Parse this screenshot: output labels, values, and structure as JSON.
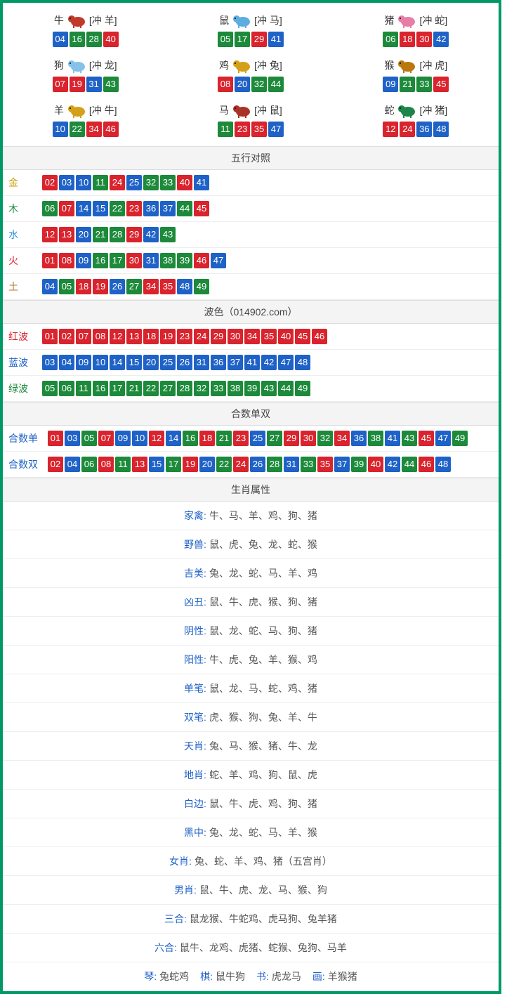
{
  "colors": {
    "border": "#009966",
    "ball_red": "#d9232d",
    "ball_blue": "#1f62c7",
    "ball_green": "#1c8a3a",
    "header_bg": "#f4f4f4",
    "row_border": "#eeeeee",
    "label_gold": "#c79a00",
    "label_wood": "#1c8a3a",
    "label_water": "#1f8fd9",
    "label_fire": "#d9232d",
    "label_earth": "#b07a2a",
    "attr_label": "#1f62c7"
  },
  "ball_color_rule": "red: [1,2,7,8,12,13,18,19,23,24,29,30,34,35,40,45,46]; blue: [3,4,9,10,14,15,20,25,26,31,36,37,41,42,47,48]; green: [5,6,11,16,17,21,22,27,28,32,33,38,39,43,44,49]",
  "zodiac": [
    {
      "name": "牛",
      "conflict": "[冲 羊]",
      "icon_color": "#c0392b",
      "balls": [
        4,
        16,
        28,
        40
      ]
    },
    {
      "name": "鼠",
      "conflict": "[冲 马]",
      "icon_color": "#5dade2",
      "balls": [
        5,
        17,
        29,
        41
      ]
    },
    {
      "name": "猪",
      "conflict": "[冲 蛇]",
      "icon_color": "#e67ea8",
      "balls": [
        6,
        18,
        30,
        42
      ]
    },
    {
      "name": "狗",
      "conflict": "[冲 龙]",
      "icon_color": "#85c1e9",
      "balls": [
        7,
        19,
        31,
        43
      ]
    },
    {
      "name": "鸡",
      "conflict": "[冲 兔]",
      "icon_color": "#d4a017",
      "balls": [
        8,
        20,
        32,
        44
      ]
    },
    {
      "name": "猴",
      "conflict": "[冲 虎]",
      "icon_color": "#b9770e",
      "balls": [
        9,
        21,
        33,
        45
      ]
    },
    {
      "name": "羊",
      "conflict": "[冲 牛]",
      "icon_color": "#d4a017",
      "balls": [
        10,
        22,
        34,
        46
      ]
    },
    {
      "name": "马",
      "conflict": "[冲 鼠]",
      "icon_color": "#a93226",
      "balls": [
        11,
        23,
        35,
        47
      ]
    },
    {
      "name": "蛇",
      "conflict": "[冲 猪]",
      "icon_color": "#1e8449",
      "balls": [
        12,
        24,
        36,
        48
      ]
    }
  ],
  "sections": {
    "wuxing": {
      "title": "五行对照",
      "rows": [
        {
          "label": "金",
          "class": "lbl-gold",
          "balls": [
            2,
            3,
            10,
            11,
            24,
            25,
            32,
            33,
            40,
            41
          ]
        },
        {
          "label": "木",
          "class": "lbl-wood",
          "balls": [
            6,
            7,
            14,
            15,
            22,
            23,
            36,
            37,
            44,
            45
          ]
        },
        {
          "label": "水",
          "class": "lbl-water",
          "balls": [
            12,
            13,
            20,
            21,
            28,
            29,
            42,
            43
          ]
        },
        {
          "label": "火",
          "class": "lbl-fire",
          "balls": [
            1,
            8,
            9,
            16,
            17,
            30,
            31,
            38,
            39,
            46,
            47
          ]
        },
        {
          "label": "土",
          "class": "lbl-earth",
          "balls": [
            4,
            5,
            18,
            19,
            26,
            27,
            34,
            35,
            48,
            49
          ]
        }
      ]
    },
    "bose": {
      "title": "波色（014902.com）",
      "rows": [
        {
          "label": "红波",
          "class": "lbl-red",
          "balls": [
            1,
            2,
            7,
            8,
            12,
            13,
            18,
            19,
            23,
            24,
            29,
            30,
            34,
            35,
            40,
            45,
            46
          ]
        },
        {
          "label": "蓝波",
          "class": "lbl-blue",
          "balls": [
            3,
            4,
            9,
            10,
            14,
            15,
            20,
            25,
            26,
            31,
            36,
            37,
            41,
            42,
            47,
            48
          ]
        },
        {
          "label": "绿波",
          "class": "lbl-green",
          "balls": [
            5,
            6,
            11,
            16,
            17,
            21,
            22,
            27,
            28,
            32,
            33,
            38,
            39,
            43,
            44,
            49
          ]
        }
      ]
    },
    "heshu": {
      "title": "合数单双",
      "rows": [
        {
          "label": "合数单",
          "class": "lbl-blue",
          "balls": [
            1,
            3,
            5,
            7,
            9,
            10,
            12,
            14,
            16,
            18,
            21,
            23,
            25,
            27,
            29,
            30,
            32,
            34,
            36,
            38,
            41,
            43,
            45,
            47,
            49
          ]
        },
        {
          "label": "合数双",
          "class": "lbl-blue",
          "balls": [
            2,
            4,
            6,
            8,
            11,
            13,
            15,
            17,
            19,
            20,
            22,
            24,
            26,
            28,
            31,
            33,
            35,
            37,
            39,
            40,
            42,
            44,
            46,
            48
          ]
        }
      ]
    },
    "attrs": {
      "title": "生肖属性",
      "rows": [
        {
          "label": "家禽:",
          "value": "牛、马、羊、鸡、狗、猪"
        },
        {
          "label": "野兽:",
          "value": "鼠、虎、兔、龙、蛇、猴"
        },
        {
          "label": "吉美:",
          "value": "兔、龙、蛇、马、羊、鸡"
        },
        {
          "label": "凶丑:",
          "value": "鼠、牛、虎、猴、狗、猪"
        },
        {
          "label": "阴性:",
          "value": "鼠、龙、蛇、马、狗、猪"
        },
        {
          "label": "阳性:",
          "value": "牛、虎、兔、羊、猴、鸡"
        },
        {
          "label": "单笔:",
          "value": "鼠、龙、马、蛇、鸡、猪"
        },
        {
          "label": "双笔:",
          "value": "虎、猴、狗、兔、羊、牛"
        },
        {
          "label": "天肖:",
          "value": "兔、马、猴、猪、牛、龙"
        },
        {
          "label": "地肖:",
          "value": "蛇、羊、鸡、狗、鼠、虎"
        },
        {
          "label": "白边:",
          "value": "鼠、牛、虎、鸡、狗、猪"
        },
        {
          "label": "黑中:",
          "value": "兔、龙、蛇、马、羊、猴"
        },
        {
          "label": "女肖:",
          "value": "兔、蛇、羊、鸡、猪（五宫肖）"
        },
        {
          "label": "男肖:",
          "value": "鼠、牛、虎、龙、马、猴、狗"
        },
        {
          "label": "三合:",
          "value": "鼠龙猴、牛蛇鸡、虎马狗、兔羊猪"
        },
        {
          "label": "六合:",
          "value": "鼠牛、龙鸡、虎猪、蛇猴、兔狗、马羊"
        }
      ],
      "last_multi": [
        {
          "label": "琴:",
          "value": "兔蛇鸡"
        },
        {
          "label": "棋:",
          "value": "鼠牛狗"
        },
        {
          "label": "书:",
          "value": "虎龙马"
        },
        {
          "label": "画:",
          "value": "羊猴猪"
        }
      ]
    }
  }
}
